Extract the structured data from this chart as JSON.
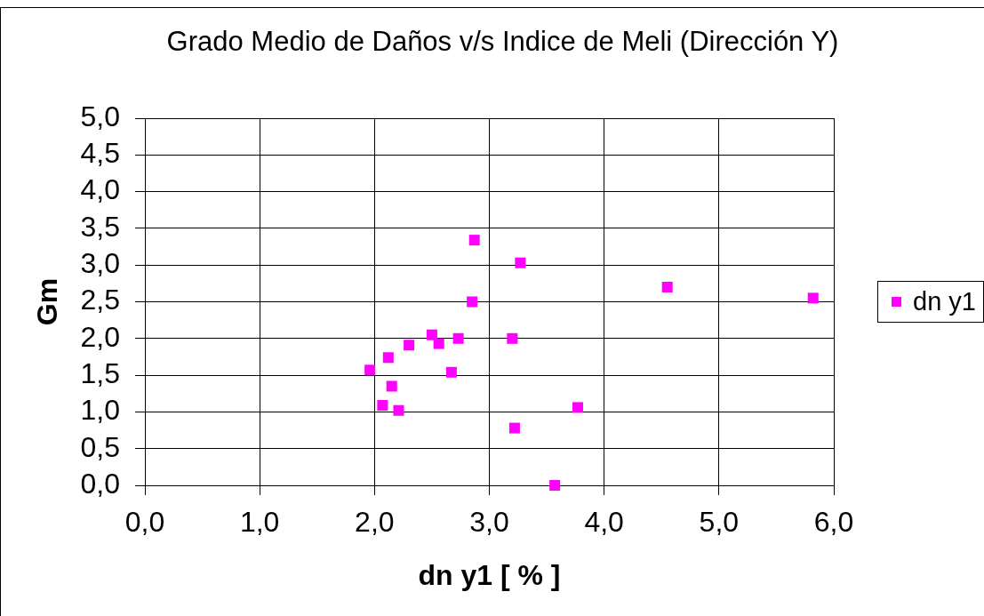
{
  "chart_data": {
    "type": "scatter",
    "title": "Grado Medio de Daños v/s Indice de Meli (Dirección Y)",
    "xlabel": "dn y1 [ % ]",
    "ylabel": "Gm",
    "x": [
      2.87,
      3.27,
      2.85,
      2.5,
      2.73,
      2.56,
      2.3,
      3.2,
      2.12,
      1.96,
      2.67,
      2.15,
      2.07,
      2.21,
      3.77,
      3.22,
      3.57,
      4.55,
      5.82
    ],
    "series": [
      {
        "name": "dn y1",
        "color": "#ff00ff",
        "values": [
          3.34,
          3.03,
          2.5,
          2.05,
          2.0,
          1.93,
          1.91,
          2.0,
          1.74,
          1.57,
          1.54,
          1.35,
          1.09,
          1.02,
          1.06,
          0.78,
          0.0,
          2.7,
          2.55
        ]
      }
    ],
    "xlim": [
      0,
      6
    ],
    "ylim": [
      0,
      5
    ],
    "xticks": [
      {
        "value": 0,
        "label": "0,0"
      },
      {
        "value": 1,
        "label": "1,0"
      },
      {
        "value": 2,
        "label": "2,0"
      },
      {
        "value": 3,
        "label": "3,0"
      },
      {
        "value": 4,
        "label": "4,0"
      },
      {
        "value": 5,
        "label": "5,0"
      },
      {
        "value": 6,
        "label": "6,0"
      }
    ],
    "yticks": [
      {
        "value": 0,
        "label": "0,0"
      },
      {
        "value": 0.5,
        "label": "0,5"
      },
      {
        "value": 1,
        "label": "1,0"
      },
      {
        "value": 1.5,
        "label": "1,5"
      },
      {
        "value": 2,
        "label": "2,0"
      },
      {
        "value": 2.5,
        "label": "2,5"
      },
      {
        "value": 3,
        "label": "3,0"
      },
      {
        "value": 3.5,
        "label": "3,5"
      },
      {
        "value": 4,
        "label": "4,0"
      },
      {
        "value": 4.5,
        "label": "4,5"
      },
      {
        "value": 5,
        "label": "5,0"
      }
    ],
    "grid": true,
    "legend": "right",
    "marker": "square"
  }
}
